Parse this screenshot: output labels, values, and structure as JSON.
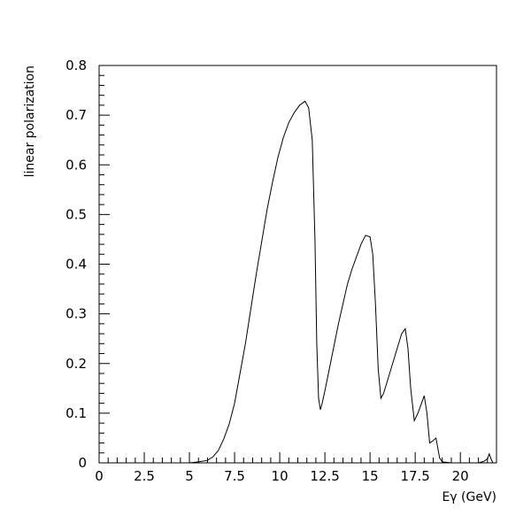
{
  "chart_data": {
    "type": "line",
    "xlabel": "Eγ (GeV)",
    "ylabel": "linear polarization",
    "xlim": [
      0,
      22
    ],
    "ylim": [
      0,
      0.8
    ],
    "grid": false,
    "x_ticks": [
      0,
      2.5,
      5,
      7.5,
      10,
      12.5,
      15,
      17.5,
      20
    ],
    "x_tick_labels": [
      "0",
      "2.5",
      "5",
      "7.5",
      "10",
      "12.5",
      "15",
      "17.5",
      "20"
    ],
    "y_ticks": [
      0,
      0.1,
      0.2,
      0.3,
      0.4,
      0.5,
      0.6,
      0.7,
      0.8
    ],
    "y_tick_labels": [
      "0",
      "0.1",
      "0.2",
      "0.3",
      "0.4",
      "0.5",
      "0.6",
      "0.7",
      "0.8"
    ],
    "series": [
      {
        "x": [
          5.0,
          5.5,
          6.0,
          6.3,
          6.6,
          6.9,
          7.2,
          7.5,
          7.8,
          8.1,
          8.4,
          8.7,
          9.0,
          9.3,
          9.6,
          9.9,
          10.2,
          10.5,
          10.8,
          11.1,
          11.4,
          11.6,
          11.8,
          11.95,
          12.05,
          12.15,
          12.25,
          12.35,
          12.5,
          12.75,
          13.0,
          13.25,
          13.5,
          13.75,
          14.0,
          14.25,
          14.5,
          14.75,
          15.0,
          15.15,
          15.3,
          15.45,
          15.6,
          15.75,
          16.0,
          16.25,
          16.5,
          16.75,
          16.95,
          17.1,
          17.25,
          17.45,
          17.65,
          17.85,
          18.0,
          18.15,
          18.3,
          18.5,
          18.65,
          18.85,
          19.0,
          19.5,
          20.0,
          20.5,
          21.0,
          21.3,
          21.5,
          21.6,
          21.7,
          21.8,
          22.0
        ],
        "y": [
          0,
          0.002,
          0.005,
          0.012,
          0.025,
          0.048,
          0.078,
          0.12,
          0.18,
          0.24,
          0.31,
          0.38,
          0.445,
          0.51,
          0.565,
          0.615,
          0.655,
          0.685,
          0.705,
          0.72,
          0.728,
          0.715,
          0.65,
          0.45,
          0.24,
          0.13,
          0.107,
          0.12,
          0.145,
          0.19,
          0.235,
          0.28,
          0.32,
          0.36,
          0.39,
          0.415,
          0.44,
          0.458,
          0.455,
          0.42,
          0.32,
          0.19,
          0.13,
          0.14,
          0.17,
          0.2,
          0.23,
          0.26,
          0.27,
          0.23,
          0.15,
          0.085,
          0.1,
          0.12,
          0.135,
          0.1,
          0.04,
          0.045,
          0.05,
          0.01,
          0.002,
          0,
          0,
          0,
          0,
          0.003,
          0.008,
          0.018,
          0.008,
          0,
          0
        ]
      }
    ]
  }
}
